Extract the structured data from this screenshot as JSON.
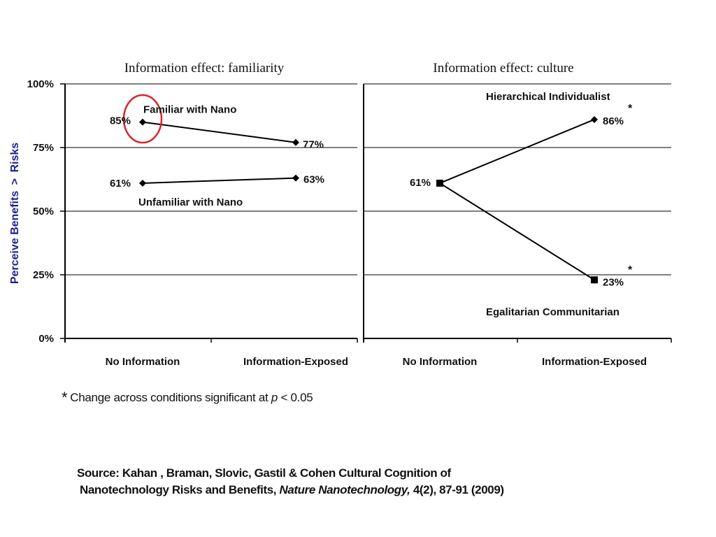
{
  "chart_data": [
    {
      "type": "line",
      "title": "Information effect: familiarity",
      "ylabel": "Perceive Benefits > Risks",
      "ylabel_parts": [
        "Perceive Benefits",
        ">",
        "Risks"
      ],
      "ylim": [
        0,
        100
      ],
      "yticks": [
        "0%",
        "25%",
        "50%",
        "75%",
        "100%"
      ],
      "categories": [
        "No Information",
        "Information-Exposed"
      ],
      "series": [
        {
          "name": "Familiar with Nano",
          "values": [
            85,
            77
          ],
          "labels": [
            "85%",
            "77%"
          ],
          "marker": "diamond"
        },
        {
          "name": "Unfamiliar with Nano",
          "values": [
            61,
            63
          ],
          "labels": [
            "61%",
            "63%"
          ],
          "marker": "diamond"
        }
      ],
      "annotation": "red circle around 85% point",
      "grid": true
    },
    {
      "type": "line",
      "title": "Information effect: culture",
      "ylim": [
        0,
        100
      ],
      "categories": [
        "No Information",
        "Information-Exposed"
      ],
      "series": [
        {
          "name": "Hierarchical Individualist",
          "values": [
            61,
            86
          ],
          "labels": [
            "61%",
            "86%"
          ],
          "marker": "diamond",
          "significance": "*"
        },
        {
          "name": "Egalitarian Communitarian",
          "values": [
            61,
            23
          ],
          "labels": [
            "",
            "23%"
          ],
          "marker": "square",
          "significance": "*"
        }
      ],
      "grid": true
    }
  ],
  "footnote": {
    "star": "*",
    "text_before": "Change across conditions significant at",
    "p": "p",
    "text_after": "< 0.05"
  },
  "source": {
    "line1": "Source: Kahan , Braman, Slovic, Gastil & Cohen Cultural Cognition of",
    "line2_before": "Nanotechnology Risks and Benefits,",
    "journal": "Nature Nanotechnology,",
    "line2_after": "4(2), 87-91 (2009)"
  },
  "colors": {
    "axis_label": "#1f1f8f",
    "highlight_circle": "#d9262c",
    "line": "#000000"
  }
}
